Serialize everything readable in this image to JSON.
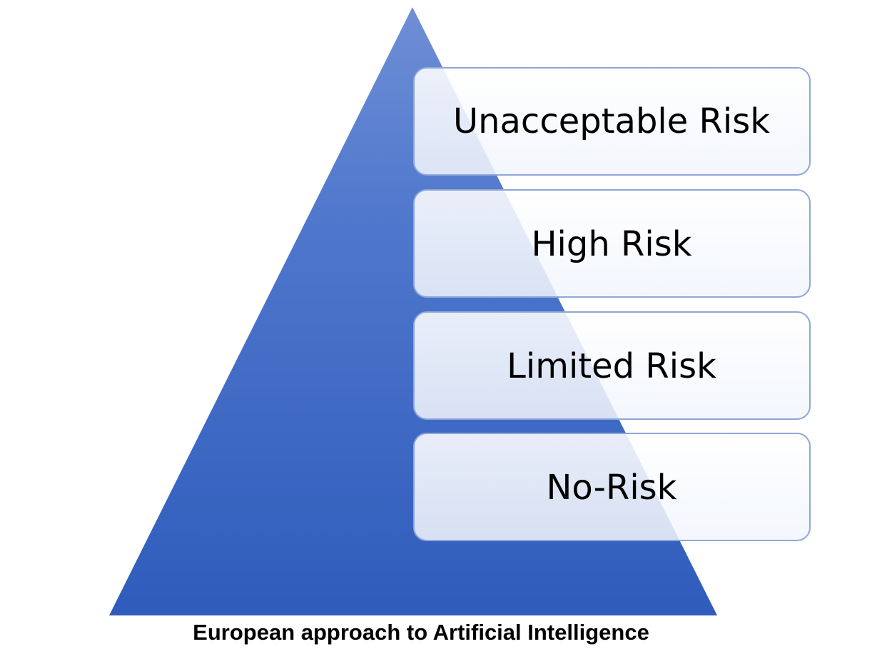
{
  "diagram": {
    "type": "risk-pyramid",
    "tiers": [
      {
        "label": "Unacceptable Risk"
      },
      {
        "label": "High Risk"
      },
      {
        "label": "Limited Risk"
      },
      {
        "label": "No-Risk"
      }
    ],
    "caption": "European approach to Artificial Intelligence"
  },
  "colors": {
    "pyramid_top": "#5b7fd0",
    "pyramid_bottom": "#2f5cbc",
    "box_fill": "#ffffff",
    "box_border": "#8ea6d9",
    "text": "#000000"
  }
}
